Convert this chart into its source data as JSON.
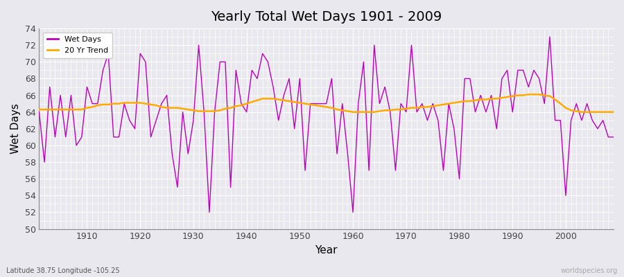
{
  "title": "Yearly Total Wet Days 1901 - 2009",
  "xlabel": "Year",
  "ylabel": "Wet Days",
  "subtitle": "Latitude 38.75 Longitude -105.25",
  "watermark": "worldspecies.org",
  "ylim": [
    50,
    74
  ],
  "yticks": [
    50,
    52,
    54,
    56,
    58,
    60,
    62,
    64,
    66,
    68,
    70,
    72,
    74
  ],
  "line_color": "#bb00bb",
  "trend_color": "#ffaa00",
  "bg_color": "#e8e8ee",
  "grid_color": "#ffffff",
  "legend_labels": [
    "Wet Days",
    "20 Yr Trend"
  ],
  "years": [
    1901,
    1902,
    1903,
    1904,
    1905,
    1906,
    1907,
    1908,
    1909,
    1910,
    1911,
    1912,
    1913,
    1914,
    1915,
    1916,
    1917,
    1918,
    1919,
    1920,
    1921,
    1922,
    1923,
    1924,
    1925,
    1926,
    1927,
    1928,
    1929,
    1930,
    1931,
    1932,
    1933,
    1934,
    1935,
    1936,
    1937,
    1938,
    1939,
    1940,
    1941,
    1942,
    1943,
    1944,
    1945,
    1946,
    1947,
    1948,
    1949,
    1950,
    1951,
    1952,
    1953,
    1954,
    1955,
    1956,
    1957,
    1958,
    1959,
    1960,
    1961,
    1962,
    1963,
    1964,
    1965,
    1966,
    1967,
    1968,
    1969,
    1970,
    1971,
    1972,
    1973,
    1974,
    1975,
    1976,
    1977,
    1978,
    1979,
    1980,
    1981,
    1982,
    1983,
    1984,
    1985,
    1986,
    1987,
    1988,
    1989,
    1990,
    1991,
    1992,
    1993,
    1994,
    1995,
    1996,
    1997,
    1998,
    1999,
    2000,
    2001,
    2002,
    2003,
    2004,
    2005,
    2006,
    2007,
    2008,
    2009
  ],
  "wet_days": [
    64,
    58,
    67,
    61,
    66,
    61,
    66,
    60,
    61,
    67,
    65,
    65,
    69,
    71,
    61,
    61,
    65,
    63,
    62,
    71,
    70,
    61,
    63,
    65,
    66,
    59,
    55,
    64,
    59,
    63,
    72,
    64,
    52,
    64,
    70,
    70,
    55,
    69,
    65,
    64,
    69,
    68,
    71,
    70,
    67,
    63,
    66,
    68,
    62,
    68,
    57,
    65,
    65,
    65,
    65,
    68,
    59,
    65,
    59,
    52,
    65,
    70,
    57,
    72,
    65,
    67,
    64,
    57,
    65,
    64,
    72,
    64,
    65,
    63,
    65,
    63,
    57,
    65,
    62,
    56,
    68,
    68,
    64,
    66,
    64,
    66,
    62,
    68,
    69,
    64,
    69,
    69,
    67,
    69,
    68,
    65,
    73,
    63,
    63,
    54,
    63,
    65,
    63,
    65,
    63,
    62,
    63,
    61,
    61
  ],
  "trend": [
    64.3,
    64.3,
    64.3,
    64.3,
    64.3,
    64.3,
    64.3,
    64.3,
    64.3,
    64.5,
    64.6,
    64.8,
    64.9,
    64.9,
    65.0,
    65.0,
    65.1,
    65.1,
    65.1,
    65.1,
    65.0,
    64.9,
    64.8,
    64.6,
    64.5,
    64.5,
    64.5,
    64.4,
    64.3,
    64.2,
    64.1,
    64.1,
    64.1,
    64.1,
    64.2,
    64.4,
    64.5,
    64.7,
    64.8,
    65.0,
    65.2,
    65.4,
    65.6,
    65.6,
    65.6,
    65.5,
    65.4,
    65.3,
    65.2,
    65.1,
    65.0,
    64.9,
    64.8,
    64.7,
    64.6,
    64.5,
    64.3,
    64.2,
    64.1,
    64.0,
    64.0,
    64.0,
    64.0,
    64.0,
    64.1,
    64.2,
    64.2,
    64.3,
    64.3,
    64.4,
    64.5,
    64.5,
    64.6,
    64.6,
    64.7,
    64.8,
    64.9,
    65.0,
    65.1,
    65.2,
    65.3,
    65.3,
    65.4,
    65.5,
    65.5,
    65.6,
    65.6,
    65.7,
    65.8,
    65.9,
    66.0,
    66.0,
    66.1,
    66.1,
    66.1,
    66.0,
    65.9,
    65.5,
    65.0,
    64.5,
    64.2,
    64.1,
    64.0,
    64.0,
    64.0,
    64.0,
    64.0,
    64.0,
    64.0
  ]
}
